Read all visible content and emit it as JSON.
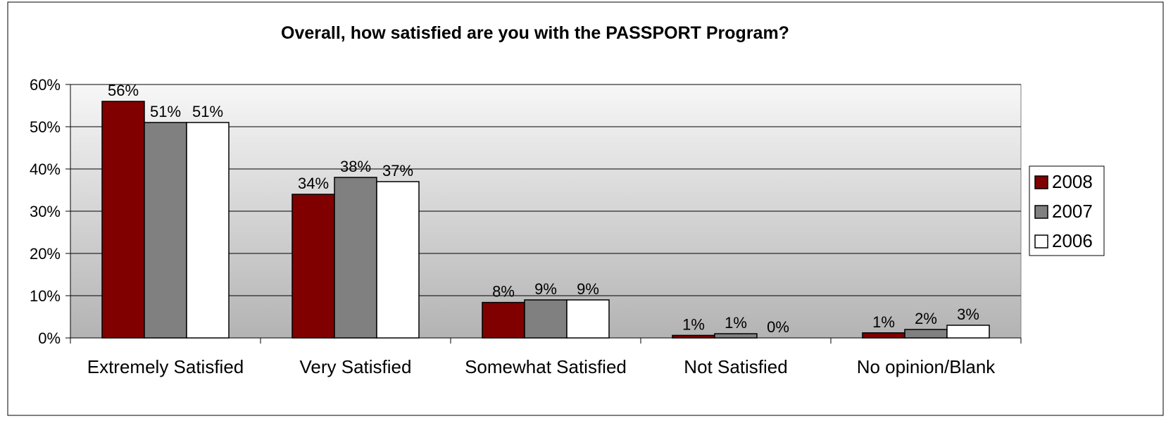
{
  "chart_data": {
    "type": "bar",
    "title": "Overall, how satisfied are you with the PASSPORT Program?",
    "categories": [
      "Extremely Satisfied",
      "Very Satisfied",
      "Somewhat Satisfied",
      "Not Satisfied",
      "No opinion/Blank"
    ],
    "series": [
      {
        "name": "2008",
        "color": "#800000",
        "values": [
          56,
          34,
          8.4,
          0.6,
          1.2
        ],
        "labels": [
          "56%",
          "34%",
          "8%",
          "1%",
          "1%"
        ]
      },
      {
        "name": "2007",
        "color": "#808080",
        "values": [
          51,
          38,
          9,
          1,
          2
        ],
        "labels": [
          "51%",
          "38%",
          "9%",
          "1%",
          "2%"
        ]
      },
      {
        "name": "2006",
        "color": "#ffffff",
        "values": [
          51,
          37,
          9,
          0,
          3
        ],
        "labels": [
          "51%",
          "37%",
          "9%",
          "0%",
          "3%"
        ]
      }
    ],
    "ylim": [
      0,
      60
    ],
    "yticks": [
      "0%",
      "10%",
      "20%",
      "30%",
      "40%",
      "50%",
      "60%"
    ],
    "ytick_values": [
      0,
      10,
      20,
      30,
      40,
      50,
      60
    ],
    "grid": true,
    "legend": "right",
    "plot_background": "gradient light gray to mid gray"
  }
}
